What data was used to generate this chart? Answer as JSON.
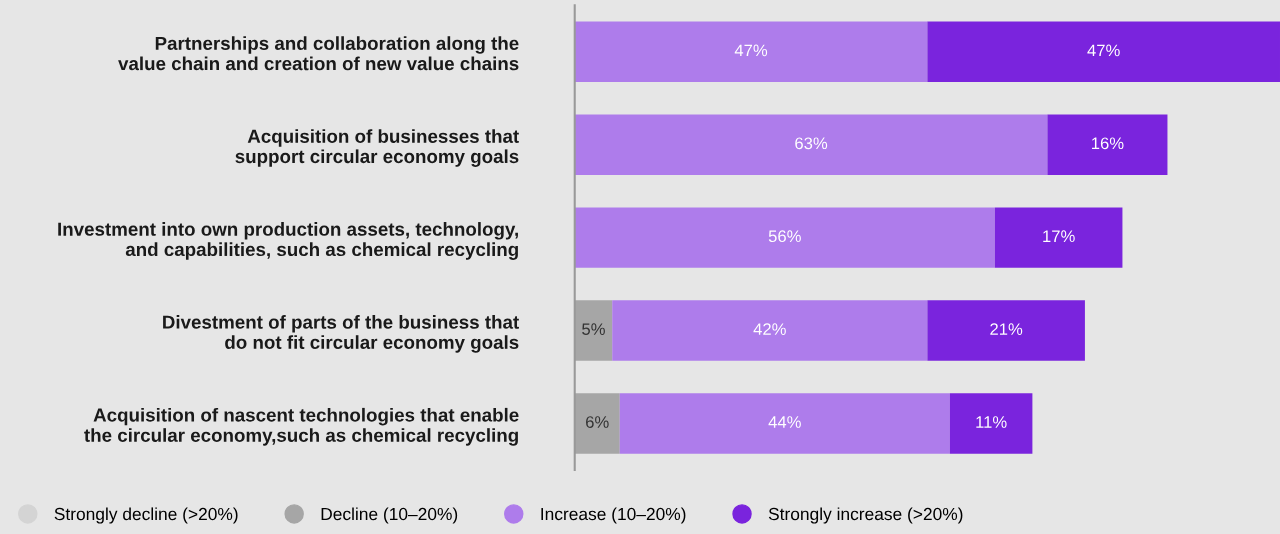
{
  "chart_data": {
    "type": "bar",
    "orientation": "horizontal",
    "stacked": true,
    "data_labels": true,
    "legend": "bottom",
    "grid": false,
    "tick_labels": "y",
    "categories": [
      "Partnerships and collaboration along the\nvalue chain and creation of new value chains",
      "Acquisition of businesses that\nsupport circular economy goals",
      "Investment into own production assets, technology,\nand capabilities, such as chemical recycling",
      "Divestment of parts of the business that\ndo not fit circular economy goals",
      "Acquisition of nascent technologies that enable\nthe circular economy,such as chemical recycling"
    ],
    "series": [
      {
        "name": "Strongly decline (>20%)",
        "color": "#d4d4d4",
        "values": [
          null,
          null,
          null,
          null,
          null
        ]
      },
      {
        "name": "Decline (10–20%)",
        "color": "#a6a6a6",
        "values": [
          null,
          null,
          null,
          5,
          6
        ],
        "value_labels": [
          null,
          null,
          null,
          "5%",
          "6%"
        ]
      },
      {
        "name": "Increase (10–20%)",
        "color": "#ae7ceb",
        "values": [
          47,
          63,
          56,
          42,
          44
        ],
        "value_labels": [
          "47%",
          "63%",
          "56%",
          "42%",
          "44%"
        ]
      },
      {
        "name": "Strongly increase (>20%)",
        "color": "#7a24dd",
        "values": [
          47,
          16,
          17,
          21,
          11
        ],
        "value_labels": [
          "47%",
          "16%",
          "17%",
          "21%",
          "11%"
        ]
      }
    ]
  }
}
